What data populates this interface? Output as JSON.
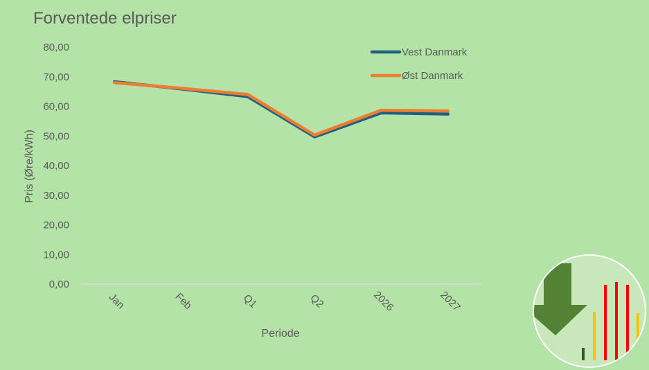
{
  "chart_data": {
    "type": "line",
    "title": "Forventede elpriser",
    "xlabel": "Periode",
    "ylabel": "Pris (Øre/kWh)",
    "categories": [
      "Jan",
      "Feb",
      "Q1",
      "Q2",
      "2026",
      "2027"
    ],
    "ylim": [
      0,
      80
    ],
    "yticks": [
      "0,00",
      "10,00",
      "20,00",
      "30,00",
      "40,00",
      "50,00",
      "60,00",
      "70,00",
      "80,00"
    ],
    "grid": false,
    "legend_position": "top-right",
    "series": [
      {
        "name": "Vest Danmark",
        "color": "#1f5f85",
        "values": [
          68.3,
          65.9,
          63.3,
          49.7,
          57.8,
          57.4
        ]
      },
      {
        "name": "Øst Danmark",
        "color": "#ed7d31",
        "values": [
          68.0,
          66.1,
          64.0,
          50.3,
          58.7,
          58.4
        ]
      }
    ]
  },
  "decoration": {
    "icon": "price-down-arrow-bars-icon",
    "colors": {
      "arrow": "#548235",
      "bar_yellow": "#ffc000",
      "bar_red": "#ff0000",
      "bar_dark": "#375623"
    }
  }
}
